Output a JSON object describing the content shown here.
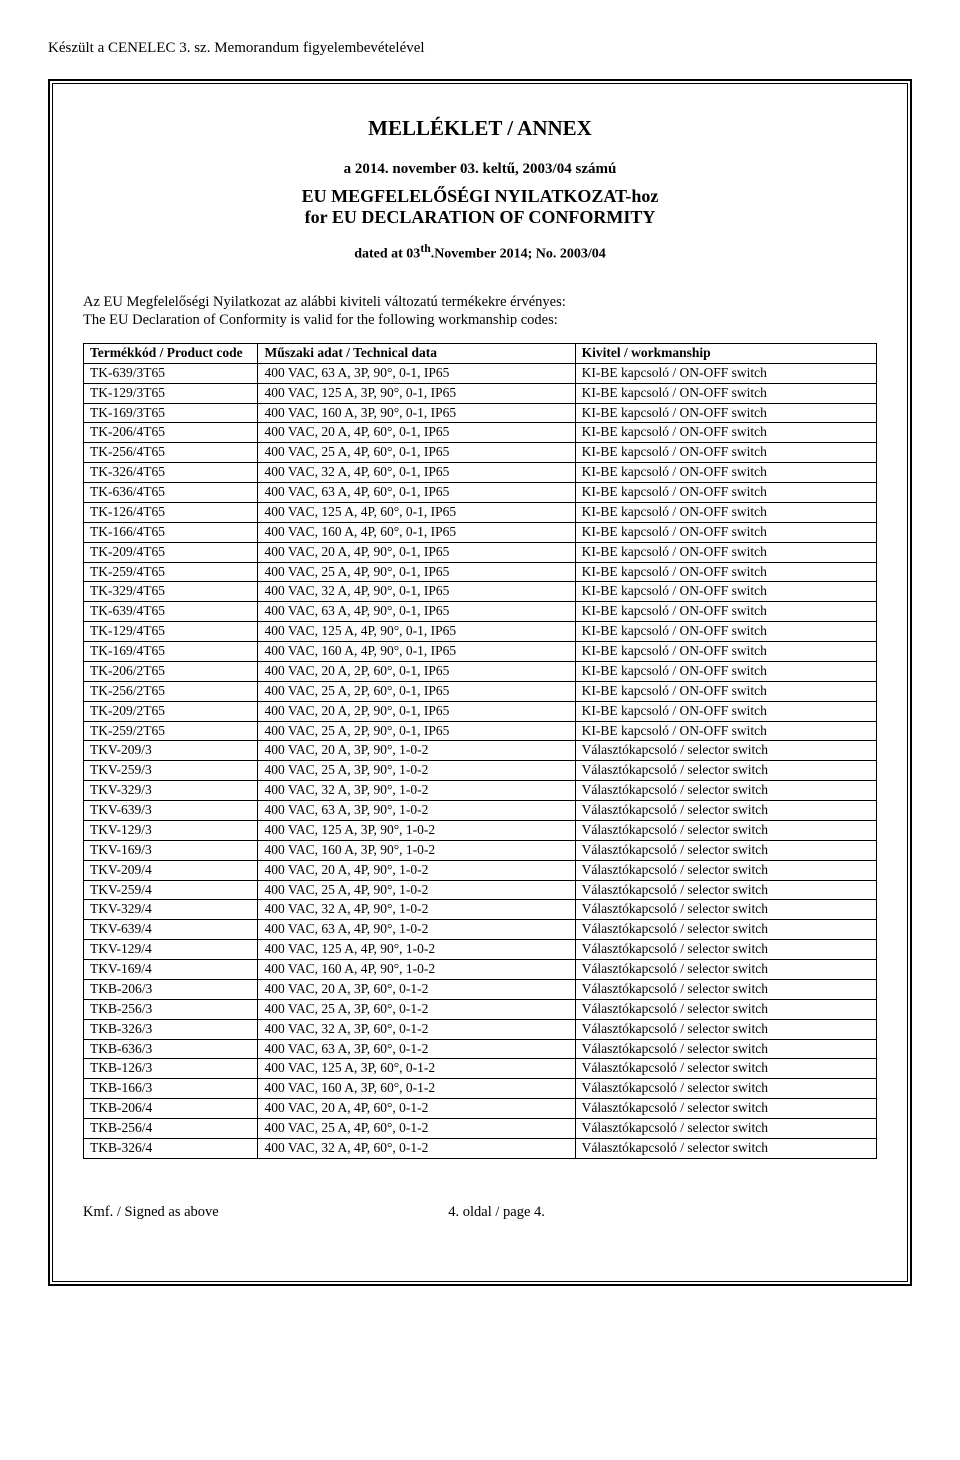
{
  "page": {
    "top_note": "Készült a CENELEC 3. sz. Memorandum figyelembevételével",
    "title_main": "MELLÉKLET / ANNEX",
    "date_line": "a 2014. november 03. keltű, 2003/04 számú",
    "subtitle1": "EU MEGFELELŐSÉGI NYILATKOZAT-hoz",
    "subtitle2": "for EU DECLARATION OF CONFORMITY",
    "dated_line_prefix": "dated at 03",
    "dated_line_sup": "th",
    "dated_line_suffix": ".November 2014; No. 2003/04",
    "intro_hu": "Az EU Megfelelőségi Nyilatkozat az alábbi kiviteli változatú termékekre érvényes:",
    "intro_en": "The EU Declaration of Conformity is valid for the following workmanship codes:",
    "footer_left": "Kmf. / Signed as above",
    "footer_right": "4. oldal / page 4."
  },
  "table": {
    "headers": {
      "code": "Termékkód / Product code",
      "tech": "Műszaki adat / Technical data",
      "work": "Kivitel / workmanship"
    },
    "rows": [
      {
        "code": "TK-639/3T65",
        "tech": "400 VAC, 63 A, 3P, 90°, 0-1, IP65",
        "work": "KI-BE kapcsoló / ON-OFF switch"
      },
      {
        "code": "TK-129/3T65",
        "tech": "400 VAC, 125 A, 3P, 90°, 0-1, IP65",
        "work": "KI-BE kapcsoló / ON-OFF switch"
      },
      {
        "code": "TK-169/3T65",
        "tech": "400 VAC, 160 A, 3P, 90°, 0-1, IP65",
        "work": "KI-BE kapcsoló / ON-OFF switch"
      },
      {
        "code": "TK-206/4T65",
        "tech": "400 VAC, 20 A, 4P, 60°, 0-1, IP65",
        "work": "KI-BE kapcsoló / ON-OFF switch"
      },
      {
        "code": "TK-256/4T65",
        "tech": "400 VAC, 25 A, 4P, 60°, 0-1, IP65",
        "work": "KI-BE kapcsoló / ON-OFF switch"
      },
      {
        "code": "TK-326/4T65",
        "tech": "400 VAC, 32 A, 4P, 60°, 0-1, IP65",
        "work": "KI-BE kapcsoló / ON-OFF switch"
      },
      {
        "code": "TK-636/4T65",
        "tech": "400 VAC, 63 A, 4P, 60°, 0-1, IP65",
        "work": "KI-BE kapcsoló / ON-OFF switch"
      },
      {
        "code": "TK-126/4T65",
        "tech": "400 VAC, 125 A, 4P, 60°, 0-1, IP65",
        "work": "KI-BE kapcsoló / ON-OFF switch"
      },
      {
        "code": "TK-166/4T65",
        "tech": "400 VAC, 160 A, 4P, 60°, 0-1, IP65",
        "work": "KI-BE kapcsoló / ON-OFF switch"
      },
      {
        "code": "TK-209/4T65",
        "tech": "400 VAC, 20 A, 4P, 90°, 0-1, IP65",
        "work": "KI-BE kapcsoló / ON-OFF switch"
      },
      {
        "code": "TK-259/4T65",
        "tech": "400 VAC, 25 A, 4P, 90°, 0-1, IP65",
        "work": "KI-BE kapcsoló / ON-OFF switch"
      },
      {
        "code": "TK-329/4T65",
        "tech": "400 VAC, 32 A, 4P, 90°, 0-1, IP65",
        "work": "KI-BE kapcsoló / ON-OFF switch"
      },
      {
        "code": "TK-639/4T65",
        "tech": "400 VAC, 63 A, 4P, 90°, 0-1, IP65",
        "work": "KI-BE kapcsoló / ON-OFF switch"
      },
      {
        "code": "TK-129/4T65",
        "tech": "400 VAC, 125 A, 4P, 90°, 0-1, IP65",
        "work": "KI-BE kapcsoló / ON-OFF switch"
      },
      {
        "code": "TK-169/4T65",
        "tech": "400 VAC, 160 A, 4P, 90°, 0-1, IP65",
        "work": "KI-BE kapcsoló / ON-OFF switch"
      },
      {
        "code": "TK-206/2T65",
        "tech": "400 VAC, 20 A, 2P, 60°, 0-1, IP65",
        "work": "KI-BE kapcsoló / ON-OFF switch"
      },
      {
        "code": "TK-256/2T65",
        "tech": "400 VAC, 25 A, 2P, 60°, 0-1, IP65",
        "work": "KI-BE kapcsoló / ON-OFF switch"
      },
      {
        "code": "TK-209/2T65",
        "tech": "400 VAC, 20 A, 2P, 90°, 0-1, IP65",
        "work": "KI-BE kapcsoló / ON-OFF switch"
      },
      {
        "code": "TK-259/2T65",
        "tech": "400 VAC, 25 A, 2P, 90°, 0-1, IP65",
        "work": "KI-BE kapcsoló / ON-OFF switch"
      },
      {
        "code": "TKV-209/3",
        "tech": "400 VAC, 20 A, 3P, 90°, 1-0-2",
        "work": "Választókapcsoló / selector switch"
      },
      {
        "code": "TKV-259/3",
        "tech": "400 VAC, 25 A, 3P, 90°, 1-0-2",
        "work": "Választókapcsoló / selector switch"
      },
      {
        "code": "TKV-329/3",
        "tech": "400 VAC, 32 A, 3P, 90°, 1-0-2",
        "work": "Választókapcsoló / selector switch"
      },
      {
        "code": "TKV-639/3",
        "tech": "400 VAC, 63 A, 3P, 90°, 1-0-2",
        "work": "Választókapcsoló / selector switch"
      },
      {
        "code": "TKV-129/3",
        "tech": "400 VAC, 125 A, 3P, 90°, 1-0-2",
        "work": "Választókapcsoló / selector switch"
      },
      {
        "code": "TKV-169/3",
        "tech": "400 VAC, 160 A, 3P, 90°, 1-0-2",
        "work": "Választókapcsoló / selector switch"
      },
      {
        "code": "TKV-209/4",
        "tech": "400 VAC, 20 A, 4P, 90°, 1-0-2",
        "work": "Választókapcsoló / selector switch"
      },
      {
        "code": "TKV-259/4",
        "tech": "400 VAC, 25 A, 4P, 90°, 1-0-2",
        "work": "Választókapcsoló / selector switch"
      },
      {
        "code": "TKV-329/4",
        "tech": "400 VAC, 32 A, 4P, 90°, 1-0-2",
        "work": "Választókapcsoló / selector switch"
      },
      {
        "code": "TKV-639/4",
        "tech": "400 VAC, 63 A, 4P, 90°, 1-0-2",
        "work": "Választókapcsoló / selector switch"
      },
      {
        "code": "TKV-129/4",
        "tech": "400 VAC, 125 A, 4P, 90°, 1-0-2",
        "work": "Választókapcsoló / selector switch"
      },
      {
        "code": "TKV-169/4",
        "tech": "400 VAC, 160 A, 4P, 90°, 1-0-2",
        "work": "Választókapcsoló / selector switch"
      },
      {
        "code": "TKB-206/3",
        "tech": "400 VAC, 20 A, 3P, 60°, 0-1-2",
        "work": "Választókapcsoló / selector switch"
      },
      {
        "code": "TKB-256/3",
        "tech": "400 VAC, 25 A, 3P, 60°, 0-1-2",
        "work": "Választókapcsoló / selector switch"
      },
      {
        "code": "TKB-326/3",
        "tech": "400 VAC, 32 A, 3P, 60°, 0-1-2",
        "work": "Választókapcsoló / selector switch"
      },
      {
        "code": "TKB-636/3",
        "tech": "400 VAC, 63 A, 3P, 60°, 0-1-2",
        "work": "Választókapcsoló / selector switch"
      },
      {
        "code": "TKB-126/3",
        "tech": "400 VAC, 125 A, 3P, 60°, 0-1-2",
        "work": "Választókapcsoló / selector switch"
      },
      {
        "code": "TKB-166/3",
        "tech": "400 VAC, 160 A, 3P, 60°, 0-1-2",
        "work": "Választókapcsoló / selector switch"
      },
      {
        "code": "TKB-206/4",
        "tech": "400 VAC, 20 A, 4P, 60°, 0-1-2",
        "work": "Választókapcsoló / selector switch"
      },
      {
        "code": "TKB-256/4",
        "tech": "400 VAC, 25 A, 4P, 60°, 0-1-2",
        "work": "Választókapcsoló / selector switch"
      },
      {
        "code": "TKB-326/4",
        "tech": "400 VAC, 32 A, 4P, 60°, 0-1-2",
        "work": "Választókapcsoló / selector switch"
      }
    ]
  }
}
